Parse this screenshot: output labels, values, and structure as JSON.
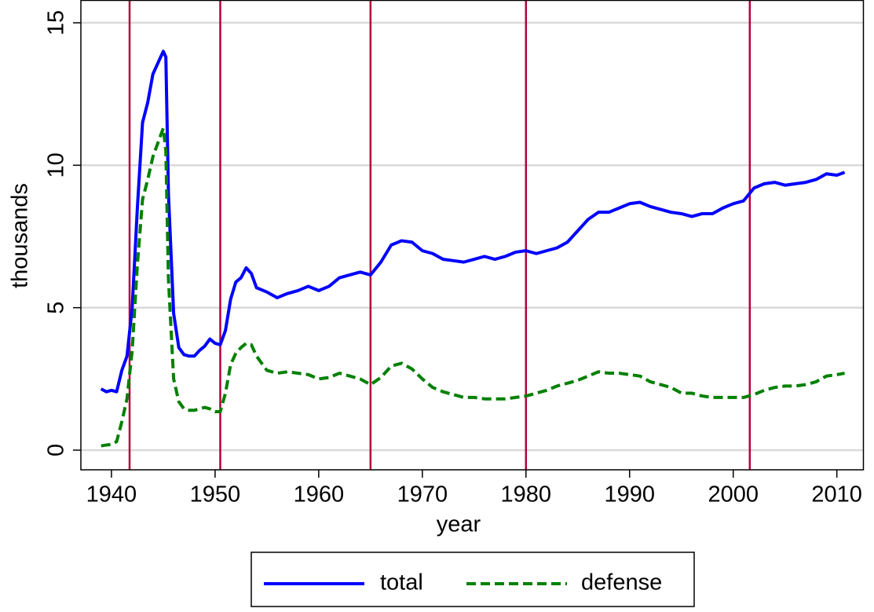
{
  "chart_data": {
    "type": "line",
    "x_label": "year",
    "y_label": "thousands",
    "x": [
      1939,
      1939.5,
      1940,
      1940.5,
      1941,
      1941.5,
      1942,
      1942.5,
      1943,
      1943.5,
      1944,
      1944.5,
      1945,
      1945.25,
      1945.5,
      1946,
      1946.5,
      1947,
      1947.5,
      1948,
      1948.5,
      1949,
      1949.5,
      1950,
      1950.5,
      1951,
      1951.5,
      1952,
      1952.5,
      1953,
      1953.5,
      1954,
      1955,
      1956,
      1957,
      1958,
      1959,
      1960,
      1961,
      1962,
      1963,
      1964,
      1965,
      1966,
      1967,
      1968,
      1969,
      1970,
      1971,
      1972,
      1973,
      1974,
      1975,
      1976,
      1977,
      1978,
      1979,
      1980,
      1981,
      1982,
      1983,
      1984,
      1985,
      1986,
      1987,
      1988,
      1989,
      1990,
      1991,
      1992,
      1993,
      1994,
      1995,
      1996,
      1997,
      1998,
      1999,
      2000,
      2001,
      2002,
      2003,
      2004,
      2005,
      2006,
      2007,
      2008,
      2009,
      2010,
      2010.75
    ],
    "series": [
      {
        "name": "total",
        "color": "#0000ff",
        "line_style": "solid",
        "values": [
          2.15,
          2.05,
          2.1,
          2.05,
          2.8,
          3.3,
          5.0,
          8.5,
          11.5,
          12.2,
          13.2,
          13.6,
          14.0,
          13.8,
          9.0,
          4.8,
          3.6,
          3.35,
          3.3,
          3.3,
          3.5,
          3.65,
          3.9,
          3.75,
          3.7,
          4.2,
          5.3,
          5.9,
          6.05,
          6.4,
          6.2,
          5.7,
          5.55,
          5.35,
          5.5,
          5.6,
          5.75,
          5.6,
          5.75,
          6.05,
          6.15,
          6.25,
          6.15,
          6.6,
          7.2,
          7.35,
          7.3,
          7.0,
          6.9,
          6.7,
          6.65,
          6.6,
          6.7,
          6.8,
          6.7,
          6.8,
          6.95,
          7.0,
          6.9,
          7.0,
          7.1,
          7.3,
          7.7,
          8.1,
          8.35,
          8.35,
          8.5,
          8.65,
          8.7,
          8.55,
          8.45,
          8.35,
          8.3,
          8.2,
          8.3,
          8.3,
          8.5,
          8.65,
          8.75,
          9.2,
          9.35,
          9.4,
          9.3,
          9.35,
          9.4,
          9.5,
          9.7,
          9.65,
          9.75
        ]
      },
      {
        "name": "defense",
        "color": "#008000",
        "line_style": "dashed",
        "values": [
          0.15,
          0.18,
          0.2,
          0.3,
          1.0,
          1.8,
          3.5,
          6.5,
          8.8,
          9.5,
          10.3,
          10.8,
          11.3,
          10.5,
          6.0,
          2.5,
          1.7,
          1.45,
          1.4,
          1.4,
          1.45,
          1.5,
          1.45,
          1.35,
          1.35,
          2.0,
          3.0,
          3.4,
          3.6,
          3.75,
          3.7,
          3.3,
          2.8,
          2.7,
          2.75,
          2.7,
          2.65,
          2.5,
          2.55,
          2.7,
          2.6,
          2.5,
          2.3,
          2.55,
          2.95,
          3.05,
          2.85,
          2.5,
          2.2,
          2.05,
          1.95,
          1.85,
          1.85,
          1.8,
          1.8,
          1.8,
          1.85,
          1.9,
          2.0,
          2.1,
          2.25,
          2.35,
          2.45,
          2.6,
          2.75,
          2.7,
          2.7,
          2.65,
          2.6,
          2.4,
          2.3,
          2.2,
          2.0,
          2.0,
          1.9,
          1.85,
          1.85,
          1.85,
          1.85,
          1.95,
          2.1,
          2.2,
          2.25,
          2.25,
          2.3,
          2.4,
          2.6,
          2.65,
          2.7
        ]
      }
    ],
    "vlines": [
      1941.75,
      1950.5,
      1965,
      1980,
      2001.6
    ],
    "vline_color": "#b5003c",
    "xlim": [
      1937.05,
      2012.6
    ],
    "ylim": [
      -0.69,
      15.8
    ],
    "xticks": [
      1940,
      1950,
      1960,
      1970,
      1980,
      1990,
      2000,
      2010
    ],
    "yticks": [
      0,
      5,
      10,
      15
    ],
    "grid": true,
    "legend": "bottom"
  }
}
